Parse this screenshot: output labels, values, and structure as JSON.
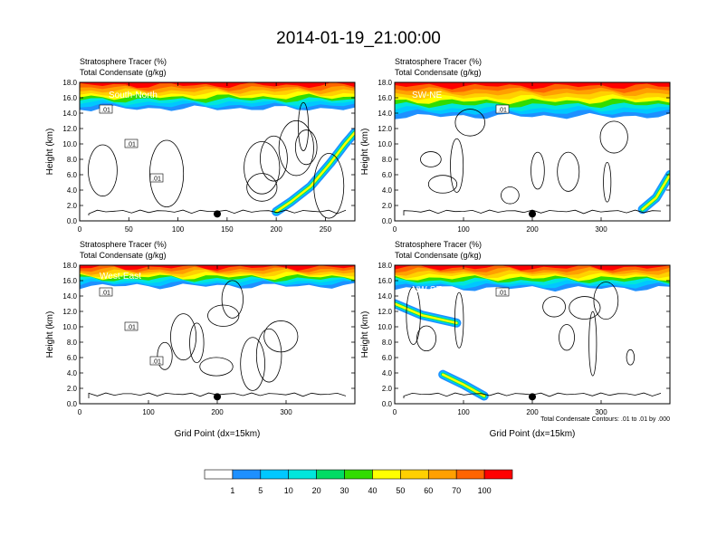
{
  "title": "2014-01-19_21:00:00",
  "colors": {
    "fill_levels": [
      "#ffffff",
      "#1e90ff",
      "#00c8ff",
      "#00e6dc",
      "#00dc64",
      "#32dc00",
      "#b4e628",
      "#ffff00",
      "#ffd000",
      "#ffa000",
      "#ff6400",
      "#ff0000"
    ]
  },
  "chart_data": [
    {
      "type": "heatmap",
      "panel": "South-North",
      "title_lines": [
        "Stratosphere Tracer   (%)",
        "Total Condensate   (g/kg)"
      ],
      "ylabel": "Height (km)",
      "xlabel": "",
      "xlim": [
        0,
        280
      ],
      "ylim": [
        0,
        18
      ],
      "x_ticks": [
        0,
        50,
        100,
        150,
        200,
        250
      ],
      "y_ticks": [
        "0.0",
        "2.0",
        "4.0",
        "6.0",
        "8.0",
        "10.0",
        "12.0",
        "14.0",
        "16.0",
        "18.0"
      ],
      "marker_x": 140,
      "contour_labels": [
        ".01",
        ".01",
        ".01"
      ],
      "tracer_base_km": 14.6,
      "plume": [
        [
          200,
          1.2
        ],
        [
          215,
          2.5
        ],
        [
          235,
          4.5
        ],
        [
          255,
          7.5
        ],
        [
          270,
          10.0
        ],
        [
          280,
          11.5
        ]
      ]
    },
    {
      "type": "heatmap",
      "panel": "SW-NE",
      "title_lines": [
        "Stratosphere Tracer   (%)",
        "Total Condensate   (g/kg)"
      ],
      "ylabel": "Height (km)",
      "xlabel": "",
      "xlim": [
        0,
        400
      ],
      "ylim": [
        0,
        18
      ],
      "x_ticks": [
        0,
        100,
        200,
        300
      ],
      "y_ticks": [
        "0.0",
        "2.0",
        "4.0",
        "6.0",
        "8.0",
        "10.0",
        "12.0",
        "14.0",
        "16.0",
        "18.0"
      ],
      "marker_x": 200,
      "contour_labels": [
        ".01"
      ],
      "tracer_base_km": 13.6,
      "plume": [
        [
          360,
          1.5
        ],
        [
          380,
          3.0
        ],
        [
          400,
          6.0
        ]
      ]
    },
    {
      "type": "heatmap",
      "panel": "West-East",
      "title_lines": [
        "Stratosphere Tracer   (%)",
        "Total Condensate   (g/kg)"
      ],
      "ylabel": "Height (km)",
      "xlabel": "Grid Point (dx=15km)",
      "xlim": [
        0,
        400
      ],
      "ylim": [
        0,
        18
      ],
      "x_ticks": [
        0,
        100,
        200,
        300
      ],
      "y_ticks": [
        "0.0",
        "2.0",
        "4.0",
        "6.0",
        "8.0",
        "10.0",
        "12.0",
        "14.0",
        "16.0",
        "18.0"
      ],
      "marker_x": 200,
      "contour_labels": [
        ".01",
        ".01",
        ".01"
      ],
      "tracer_base_km": 15.3,
      "plume": []
    },
    {
      "type": "heatmap",
      "panel": "NW-SE",
      "title_lines": [
        "Stratosphere Tracer   (%)",
        "Total Condensate   (g/kg)"
      ],
      "ylabel": "Height (km)",
      "xlabel": "Grid Point (dx=15km)",
      "xlim": [
        0,
        400
      ],
      "ylim": [
        0,
        18
      ],
      "x_ticks": [
        0,
        100,
        200,
        300
      ],
      "y_ticks": [
        "0.0",
        "2.0",
        "4.0",
        "6.0",
        "8.0",
        "10.0",
        "12.0",
        "14.0",
        "16.0",
        "18.0"
      ],
      "marker_x": 200,
      "contour_labels": [
        ".01"
      ],
      "tracer_base_km": 15.0,
      "plume": [
        [
          0,
          13.0
        ],
        [
          40,
          11.5
        ],
        [
          90,
          10.5
        ]
      ],
      "plume2": [
        [
          70,
          3.8
        ],
        [
          100,
          2.5
        ],
        [
          130,
          1.0
        ]
      ],
      "footnote": "Total Condensate Contours: .01 to .01 by .000"
    }
  ],
  "colorbar": {
    "labels": [
      "1",
      "5",
      "10",
      "20",
      "30",
      "40",
      "50",
      "60",
      "70",
      "100"
    ]
  }
}
